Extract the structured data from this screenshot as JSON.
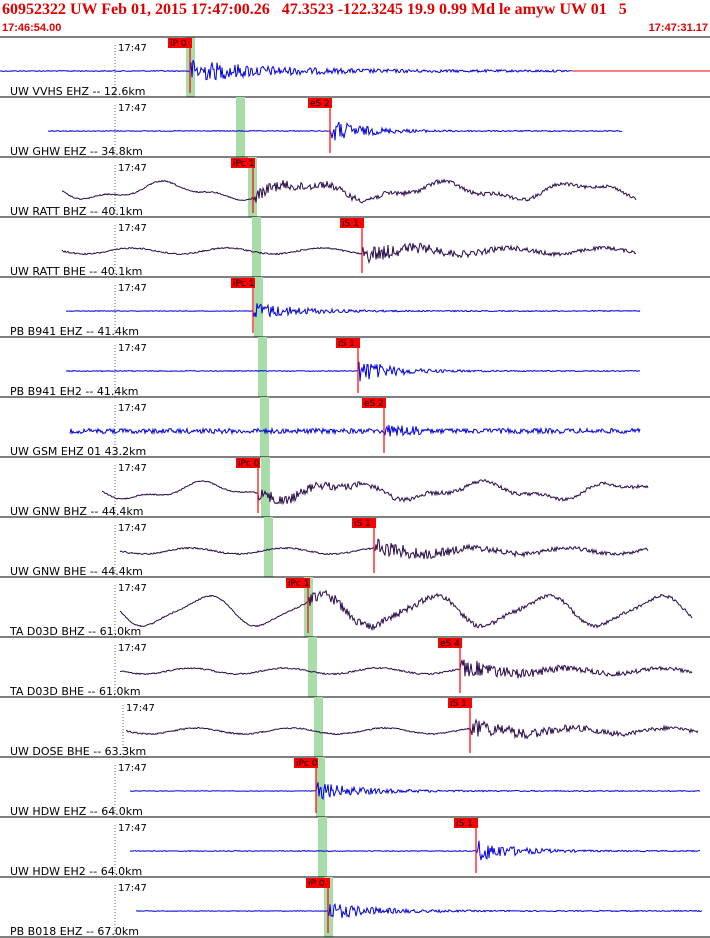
{
  "header": {
    "title": "60952322 UW Feb 01, 2015 17:47:00.26   47.3523 -122.3245 19.9 0.99 Md le amyw UW 01   5",
    "time_start": "17:46:54.00",
    "time_end": "17:47:31.17"
  },
  "colors": {
    "header_text": "#e00000",
    "trace_blue": "#0000e0",
    "trace_purple": "#2a0a4a",
    "pick_box": "#ff0000",
    "pick_window": "#a8dca8",
    "separator": "#000000"
  },
  "tick_label": "17:47",
  "traces": [
    {
      "label": "UW VVHS EHZ -- 12.6km",
      "pick": "iP 0",
      "color": "blue"
    },
    {
      "label": "UW GHW EHZ -- 34.8km",
      "pick": "eS 2",
      "color": "blue"
    },
    {
      "label": "UW RATT BHZ -- 40.1km",
      "pick": "iPc 1",
      "color": "purple"
    },
    {
      "label": "UW RATT BHE -- 40.1km",
      "pick": "iS 1",
      "color": "purple"
    },
    {
      "label": "PB B941 EHZ -- 41.4km",
      "pick": "iPc 1",
      "color": "blue"
    },
    {
      "label": "PB B941 EH2 -- 41.4km",
      "pick": "iS 1",
      "color": "blue"
    },
    {
      "label": "UW GSM EHZ 01 43.2km",
      "pick": "eS 2",
      "color": "blue"
    },
    {
      "label": "UW GNW BHZ -- 44.4km",
      "pick": "iPc 0",
      "color": "purple"
    },
    {
      "label": "UW GNW BHE -- 44.4km",
      "pick": "iS 1",
      "color": "purple"
    },
    {
      "label": "TA D03D BHZ -- 61.0km",
      "pick": "iPc 1",
      "color": "purple"
    },
    {
      "label": "TA D03D BHE -- 61.0km",
      "pick": "eS 4",
      "color": "purple"
    },
    {
      "label": "UW DOSE BHE -- 63.3km",
      "pick": "iS 1",
      "color": "purple"
    },
    {
      "label": "UW HDW EHZ -- 64.0km",
      "pick": "iPc 0",
      "color": "blue"
    },
    {
      "label": "UW HDW EH2 -- 64.0km",
      "pick": "iS 1",
      "color": "blue"
    },
    {
      "label": "PB B018 EHZ -- 67.0km",
      "pick": "iP 0",
      "color": "blue"
    }
  ]
}
